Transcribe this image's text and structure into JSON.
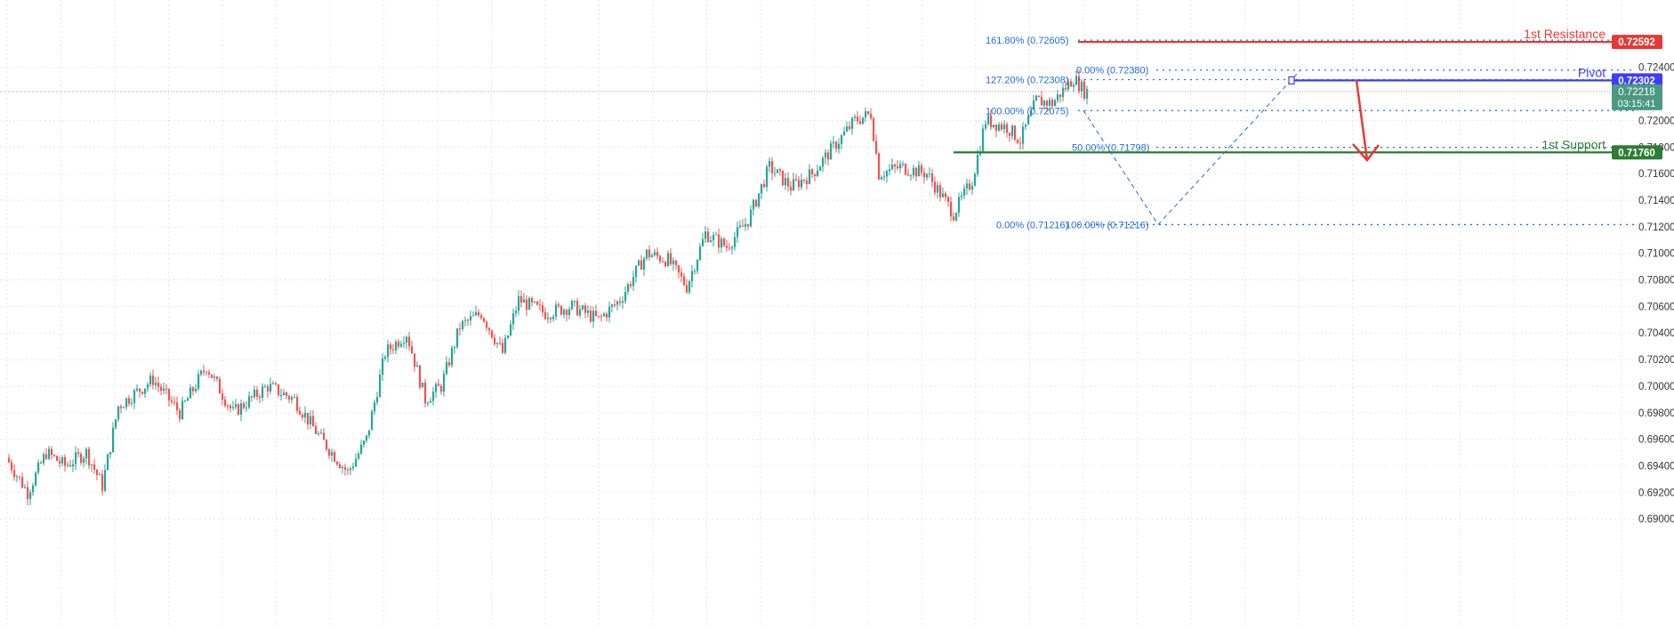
{
  "chart_data": {
    "type": "candlestick",
    "y_axis": {
      "position": "right",
      "range": [
        0.6888,
        0.7274
      ],
      "tick_labels": [
        "0.72400",
        "0.72000",
        "0.71800",
        "0.71600",
        "0.71400",
        "0.71200",
        "0.71000",
        "0.70800",
        "0.70600",
        "0.70400",
        "0.70200",
        "0.70000",
        "0.69800",
        "0.69600",
        "0.69400",
        "0.69200",
        "0.69000"
      ],
      "tick_values": [
        0.724,
        0.72,
        0.718,
        0.716,
        0.714,
        0.712,
        0.71,
        0.708,
        0.706,
        0.704,
        0.702,
        0.7,
        0.698,
        0.696,
        0.694,
        0.692,
        0.69
      ]
    },
    "grid": true,
    "colors": {
      "up": "#26a69a",
      "down": "#ef5350",
      "resistance": "#e53935",
      "pivot": "#3d3dff",
      "support": "#2e7d32",
      "fib": "#1e6bd6",
      "price": "#4a9980"
    },
    "levels": [
      {
        "id": "resistance",
        "label": "1st Resistance",
        "value": 0.72592,
        "value_text": "0.72592"
      },
      {
        "id": "pivot",
        "label": "Pivot",
        "value": 0.72302,
        "value_text": "0.72302"
      },
      {
        "id": "support",
        "label": "1st Support",
        "value": 0.7176,
        "value_text": "0.71760"
      }
    ],
    "current_price": {
      "value": 0.72218,
      "value_text": "0.72218",
      "countdown": "03:15:41"
    },
    "fib_labels": [
      {
        "text": "161.80% (0.72605)",
        "value": 0.72605
      },
      {
        "text": "127.20% (0.72308)",
        "value": 0.72308
      },
      {
        "text": "100.00% (0.72075)",
        "value": 0.72075
      },
      {
        "text": "0.00% (0.71216)",
        "value": 0.71216
      },
      {
        "text": "0.00% (0.72380)",
        "value": 0.7238
      },
      {
        "text": "50.00% (0.71798)",
        "value": 0.71798
      },
      {
        "text": "100.00% (0.71216)",
        "value": 0.71216
      }
    ],
    "anchors": [
      {
        "t": 0,
        "p": 0.6946
      },
      {
        "t": 8,
        "p": 0.692
      },
      {
        "t": 15,
        "p": 0.695
      },
      {
        "t": 22,
        "p": 0.694
      },
      {
        "t": 30,
        "p": 0.695
      },
      {
        "t": 36,
        "p": 0.6925
      },
      {
        "t": 42,
        "p": 0.6985
      },
      {
        "t": 55,
        "p": 0.7005
      },
      {
        "t": 65,
        "p": 0.698
      },
      {
        "t": 75,
        "p": 0.7015
      },
      {
        "t": 85,
        "p": 0.698
      },
      {
        "t": 98,
        "p": 0.7
      },
      {
        "t": 108,
        "p": 0.699
      },
      {
        "t": 118,
        "p": 0.696
      },
      {
        "t": 128,
        "p": 0.6935
      },
      {
        "t": 135,
        "p": 0.696
      },
      {
        "t": 142,
        "p": 0.7025
      },
      {
        "t": 150,
        "p": 0.704
      },
      {
        "t": 157,
        "p": 0.699
      },
      {
        "t": 163,
        "p": 0.7
      },
      {
        "t": 170,
        "p": 0.7045
      },
      {
        "t": 178,
        "p": 0.7055
      },
      {
        "t": 186,
        "p": 0.7025
      },
      {
        "t": 192,
        "p": 0.7065
      },
      {
        "t": 202,
        "p": 0.7055
      },
      {
        "t": 212,
        "p": 0.706
      },
      {
        "t": 222,
        "p": 0.705
      },
      {
        "t": 230,
        "p": 0.7065
      },
      {
        "t": 240,
        "p": 0.71
      },
      {
        "t": 248,
        "p": 0.7095
      },
      {
        "t": 255,
        "p": 0.7075
      },
      {
        "t": 262,
        "p": 0.7115
      },
      {
        "t": 270,
        "p": 0.7105
      },
      {
        "t": 278,
        "p": 0.7125
      },
      {
        "t": 286,
        "p": 0.7165
      },
      {
        "t": 294,
        "p": 0.715
      },
      {
        "t": 302,
        "p": 0.716
      },
      {
        "t": 312,
        "p": 0.7185
      },
      {
        "t": 318,
        "p": 0.72
      },
      {
        "t": 324,
        "p": 0.7205
      },
      {
        "t": 327,
        "p": 0.716
      },
      {
        "t": 335,
        "p": 0.7165
      },
      {
        "t": 345,
        "p": 0.716
      },
      {
        "t": 355,
        "p": 0.713
      },
      {
        "t": 362,
        "p": 0.7155
      },
      {
        "t": 367,
        "p": 0.72
      },
      {
        "t": 375,
        "p": 0.7195
      },
      {
        "t": 380,
        "p": 0.7185
      },
      {
        "t": 386,
        "p": 0.7215
      },
      {
        "t": 392,
        "p": 0.7213
      },
      {
        "t": 397,
        "p": 0.7225
      },
      {
        "t": 400,
        "p": 0.7232
      },
      {
        "t": 404,
        "p": 0.7222
      }
    ]
  }
}
